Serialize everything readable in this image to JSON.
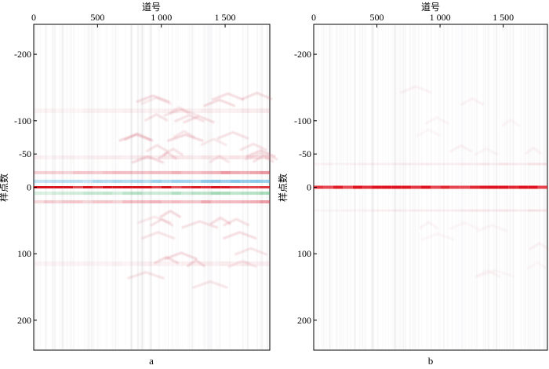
{
  "chart_data": {
    "type": "heatmap",
    "xlabel": "道号",
    "ylabel": "样点数",
    "xlim": [
      0,
      1850
    ],
    "ylim": [
      -245,
      245
    ],
    "x_ticks": [
      {
        "value": 0,
        "label": "0"
      },
      {
        "value": 500,
        "label": "500"
      },
      {
        "value": 1000,
        "label": "1 000"
      },
      {
        "value": 1500,
        "label": "1 500"
      }
    ],
    "y_ticks": [
      {
        "value": -200,
        "label": "-200"
      },
      {
        "value": -100,
        "label": "-100"
      },
      {
        "value": -50,
        "label": "-50"
      },
      {
        "value": 0,
        "label": "0"
      },
      {
        "value": 100,
        "label": "100"
      },
      {
        "value": 200,
        "label": "200"
      }
    ],
    "panels": [
      {
        "id": "a",
        "label": "a",
        "zero_line_color": "#e0202a",
        "bands": [
          {
            "y": 0,
            "color": "#d8141e",
            "opacity": 0.95,
            "width": 3
          },
          {
            "y": -9,
            "color": "#2b9ad8",
            "opacity": 0.55,
            "width": 4
          },
          {
            "y": 9,
            "color": "#3fb36a",
            "opacity": 0.45,
            "width": 4
          },
          {
            "y": -22,
            "color": "#d8283a",
            "opacity": 0.45,
            "width": 4
          },
          {
            "y": 22,
            "color": "#d8283a",
            "opacity": 0.4,
            "width": 4
          },
          {
            "y": -45,
            "color": "#d86a7a",
            "opacity": 0.18,
            "width": 5
          },
          {
            "y": -115,
            "color": "#d86a7a",
            "opacity": 0.12,
            "width": 6
          },
          {
            "y": 115,
            "color": "#d86a7a",
            "opacity": 0.12,
            "width": 6
          }
        ]
      },
      {
        "id": "b",
        "label": "b",
        "zero_line_color": "#e0202a",
        "bands": [
          {
            "y": 0,
            "color": "#e0141e",
            "opacity": 1.0,
            "width": 4
          },
          {
            "y": -35,
            "color": "#d8687a",
            "opacity": 0.15,
            "width": 3
          },
          {
            "y": 35,
            "color": "#d8687a",
            "opacity": 0.15,
            "width": 3
          }
        ]
      }
    ],
    "colors": {
      "red": "#d8141e",
      "blue": "#2b9ad8",
      "green": "#3fb36a",
      "frame": "#000000"
    }
  }
}
